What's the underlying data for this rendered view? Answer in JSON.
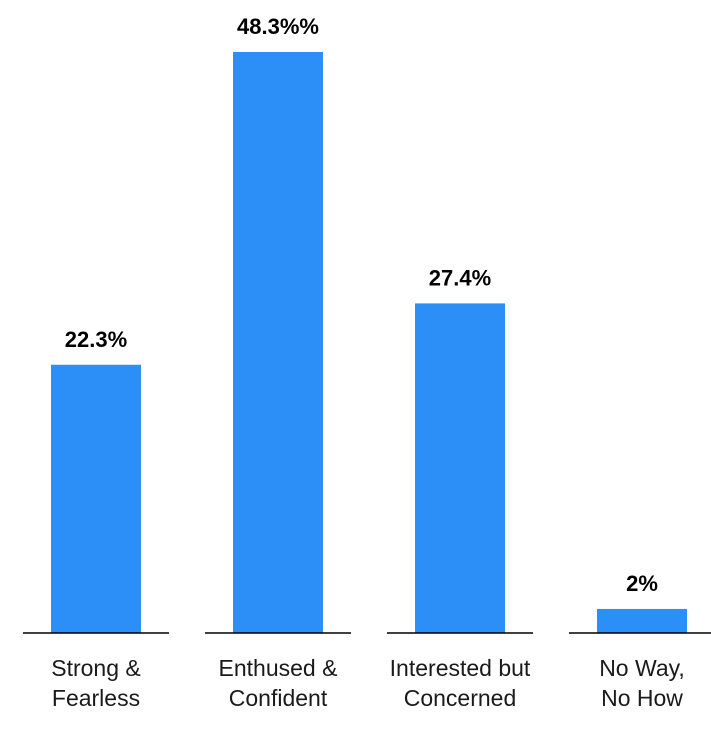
{
  "chart_data": {
    "type": "bar",
    "categories": [
      [
        "Strong &",
        "Fearless"
      ],
      [
        "Enthused &",
        "Confident"
      ],
      [
        "Interested but",
        "Concerned"
      ],
      [
        "No Way,",
        "No How"
      ]
    ],
    "values": [
      22.3,
      48.3,
      27.4,
      2
    ],
    "value_labels": [
      "22.3%",
      "48.3%%",
      "27.4%",
      "2%"
    ],
    "title": "",
    "xlabel": "",
    "ylabel": "",
    "ylim": [
      0,
      48.3
    ],
    "grid": false,
    "legend": "none",
    "bar_color": "#2b8ff7"
  }
}
